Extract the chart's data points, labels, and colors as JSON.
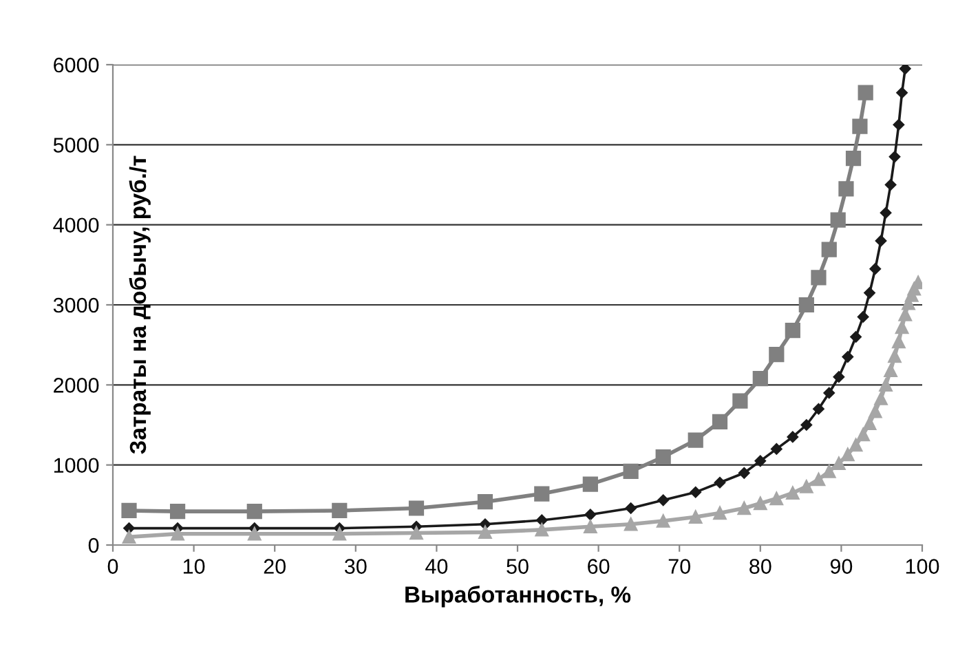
{
  "chart_data": {
    "type": "line",
    "xlabel": "Выработанность, %",
    "ylabel": "Затраты на добычу, руб./т",
    "xlim": [
      0,
      100
    ],
    "xticks": [
      0,
      10,
      20,
      30,
      40,
      50,
      60,
      70,
      80,
      90,
      100
    ],
    "ylim": [
      0,
      6000
    ],
    "yticks": [
      0,
      1000,
      2000,
      3000,
      4000,
      5000,
      6000
    ],
    "grid": "y",
    "legend": false,
    "series": [
      {
        "color": "#808080",
        "marker": "square",
        "x": [
          2,
          8,
          17.5,
          28,
          37.5,
          46,
          53,
          59,
          64,
          68,
          72,
          75,
          77.5,
          80,
          82,
          84,
          85.7,
          87.2,
          88.5,
          89.6,
          90.6,
          91.5,
          92.3,
          93
        ],
        "values": [
          430,
          420,
          420,
          430,
          460,
          540,
          640,
          760,
          920,
          1100,
          1310,
          1540,
          1800,
          2080,
          2380,
          2680,
          3000,
          3340,
          3690,
          4060,
          4450,
          4830,
          5230,
          5650
        ]
      },
      {
        "color": "#1a1a1a",
        "marker": "diamond",
        "x": [
          2,
          8,
          17.5,
          28,
          37.5,
          46,
          53,
          59,
          64,
          68,
          72,
          75,
          78,
          80,
          82,
          84,
          85.7,
          87.2,
          88.5,
          89.7,
          90.8,
          91.8,
          92.7,
          93.5,
          94.2,
          94.9,
          95.5,
          96.1,
          96.6,
          97.1,
          97.5,
          97.9
        ],
        "values": [
          210,
          210,
          210,
          210,
          230,
          260,
          310,
          380,
          460,
          560,
          660,
          780,
          900,
          1050,
          1200,
          1350,
          1500,
          1700,
          1900,
          2100,
          2350,
          2600,
          2850,
          3150,
          3450,
          3800,
          4150,
          4500,
          4850,
          5250,
          5650,
          5950
        ]
      },
      {
        "color": "#a6a6a6",
        "marker": "triangle",
        "x": [
          2,
          8,
          17.5,
          28,
          37.5,
          46,
          53,
          59,
          64,
          68,
          72,
          75,
          78,
          80,
          82,
          84,
          85.7,
          87.2,
          88.5,
          89.7,
          90.8,
          91.8,
          92.7,
          93.5,
          94.2,
          94.9,
          95.5,
          96.1,
          96.6,
          97.1,
          97.5,
          97.9,
          98.3,
          98.7,
          99.0,
          99.5
        ],
        "values": [
          100,
          140,
          140,
          140,
          150,
          160,
          190,
          230,
          260,
          300,
          350,
          400,
          460,
          520,
          580,
          650,
          730,
          820,
          920,
          1020,
          1130,
          1250,
          1380,
          1520,
          1670,
          1830,
          2000,
          2180,
          2360,
          2540,
          2720,
          2880,
          3020,
          3120,
          3200,
          3280
        ]
      }
    ]
  }
}
